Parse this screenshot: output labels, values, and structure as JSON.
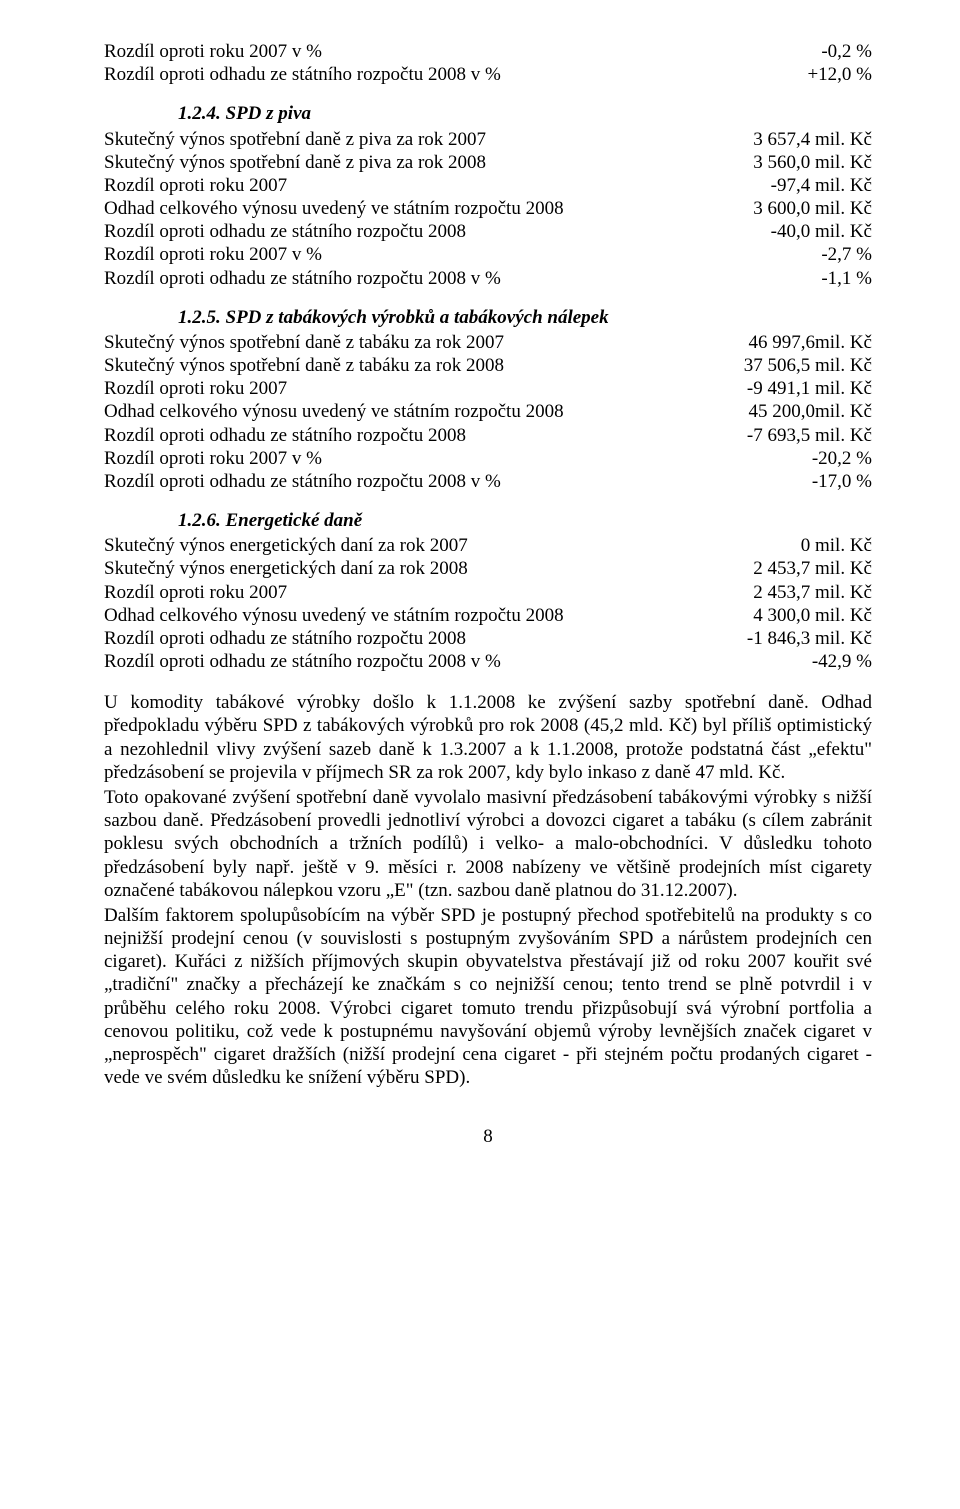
{
  "pageNumber": "8",
  "block0": {
    "rows": [
      {
        "label": "Rozdíl oproti roku 2007 v %",
        "value": "-0,2 %"
      },
      {
        "label": "Rozdíl oproti odhadu ze státního rozpočtu 2008 v %",
        "value": "+12,0 %"
      }
    ]
  },
  "section124": {
    "heading": "1.2.4.   SPD z piva",
    "rows": [
      {
        "label": "Skutečný výnos spotřební daně z piva za rok 2007",
        "value": "3 657,4 mil. Kč"
      },
      {
        "label": "Skutečný výnos spotřební daně z piva za rok 2008",
        "value": "3 560,0 mil. Kč"
      },
      {
        "label": "Rozdíl oproti roku 2007",
        "value": "-97,4 mil. Kč"
      },
      {
        "label": "Odhad celkového výnosu uvedený ve státním rozpočtu 2008",
        "value": "3 600,0 mil. Kč"
      },
      {
        "label": "Rozdíl oproti odhadu ze státního rozpočtu 2008",
        "value": "-40,0 mil. Kč"
      },
      {
        "label": "Rozdíl oproti roku 2007 v %",
        "value": "-2,7 %"
      },
      {
        "label": "Rozdíl oproti odhadu ze státního rozpočtu 2008 v %",
        "value": "-1,1 %"
      }
    ]
  },
  "section125": {
    "heading": "1.2.5.   SPD z tabákových výrobků a tabákových nálepek",
    "rows": [
      {
        "label": "Skutečný výnos spotřební daně z tabáku za rok 2007",
        "value": "46 997,6mil. Kč"
      },
      {
        "label": "Skutečný výnos spotřební daně z tabáku za rok 2008",
        "value": "37 506,5 mil. Kč"
      },
      {
        "label": "Rozdíl oproti roku 2007",
        "value": "-9 491,1 mil. Kč"
      },
      {
        "label": "Odhad celkového výnosu uvedený ve státním rozpočtu 2008",
        "value": "45 200,0mil. Kč"
      },
      {
        "label": "Rozdíl oproti odhadu ze státního rozpočtu 2008",
        "value": "-7 693,5 mil. Kč"
      },
      {
        "label": "Rozdíl oproti roku 2007 v %",
        "value": "-20,2 %"
      },
      {
        "label": "Rozdíl oproti odhadu ze státního rozpočtu 2008 v %",
        "value": "-17,0 %"
      }
    ]
  },
  "section126": {
    "heading": "1.2.6.   Energetické daně",
    "rows": [
      {
        "label": "Skutečný výnos energetických daní za rok 2007",
        "value": "0 mil. Kč"
      },
      {
        "label": "Skutečný výnos energetických daní za rok 2008",
        "value": "2 453,7 mil. Kč"
      },
      {
        "label": "Rozdíl oproti roku 2007",
        "value": "2 453,7 mil. Kč"
      },
      {
        "label": "Odhad celkového výnosu uvedený ve státním rozpočtu 2008",
        "value": "4 300,0 mil. Kč"
      },
      {
        "label": "Rozdíl oproti odhadu ze státního rozpočtu 2008",
        "value": "-1 846,3 mil. Kč"
      },
      {
        "label": "Rozdíl oproti odhadu ze státního rozpočtu 2008 v %",
        "value": "-42,9 %"
      }
    ]
  },
  "paragraphs": [
    "U komodity tabákové výrobky došlo k 1.1.2008 ke zvýšení sazby spotřební daně. Odhad předpokladu výběru SPD z tabákových výrobků pro rok 2008 (45,2 mld. Kč) byl příliš optimistický a nezohlednil vlivy zvýšení sazeb daně k 1.3.2007 a k 1.1.2008, protože podstatná část „efektu\" předzásobení se projevila v příjmech SR za rok 2007, kdy bylo inkaso z daně 47 mld. Kč.",
    "Toto opakované zvýšení spotřební daně vyvolalo masivní předzásobení tabákovými výrobky s nižší sazbou daně. Předzásobení provedli jednotliví výrobci a dovozci cigaret a tabáku (s cílem zabránit poklesu svých obchodních a tržních podílů) i velko- a malo-obchodníci. V důsledku tohoto předzásobení byly např. ještě v 9. měsíci r. 2008 nabízeny ve většině prodejních míst cigarety označené tabákovou nálepkou vzoru „E\" (tzn. sazbou daně platnou do 31.12.2007).",
    "Dalším faktorem spolupůsobícím na výběr SPD je postupný přechod spotřebitelů na produkty s co nejnižší prodejní cenou (v souvislosti s postupným zvyšováním SPD a nárůstem prodejních cen cigaret). Kuřáci z nižších příjmových skupin obyvatelstva přestávají již od roku 2007 kouřit své „tradiční\" značky a přecházejí ke značkám s co nejnižší cenou; tento trend se plně potvrdil i v průběhu celého roku 2008. Výrobci cigaret tomuto trendu přizpůsobují svá výrobní portfolia a cenovou politiku, což vede k postupnému navyšování objemů výroby levnějších značek cigaret v „neprospěch\" cigaret dražších (nižší prodejní cena cigaret - při stejném počtu prodaných cigaret - vede ve svém důsledku ke snížení výběru SPD)."
  ]
}
